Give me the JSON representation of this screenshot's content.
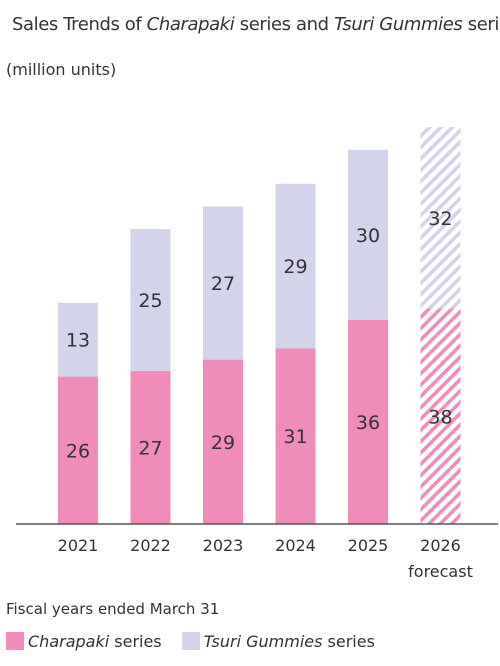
{
  "title": {
    "part1": "Sales Trends of ",
    "part2": "Charapaki",
    "part3": " series and ",
    "part4": "Tsuri Gummies",
    "part5": " series"
  },
  "unit_label": "(million units)",
  "footnote": "Fiscal years ended March 31",
  "legend": [
    {
      "name_italic": "Charapaki",
      "suffix": " series",
      "color": "#f08cba"
    },
    {
      "name_italic": "Tsuri Gummies",
      "suffix": " series",
      "color": "#d4d3ec"
    }
  ],
  "chart_data": {
    "type": "bar",
    "stacked": true,
    "categories": [
      "2021",
      "2022",
      "2023",
      "2024",
      "2025",
      "2026"
    ],
    "category_sublabels": [
      "",
      "",
      "",
      "",
      "",
      "forecast"
    ],
    "forecast_flags": [
      false,
      false,
      false,
      false,
      false,
      true
    ],
    "series": [
      {
        "name": "Charapaki series",
        "values": [
          26,
          27,
          29,
          31,
          36,
          38
        ],
        "color": "#f08cba"
      },
      {
        "name": "Tsuri Gummies series",
        "values": [
          13,
          25,
          27,
          29,
          30,
          32
        ],
        "color": "#d4d3ec"
      }
    ],
    "ylabel": "(million units)",
    "grid": false,
    "legend_position": "bottom"
  }
}
